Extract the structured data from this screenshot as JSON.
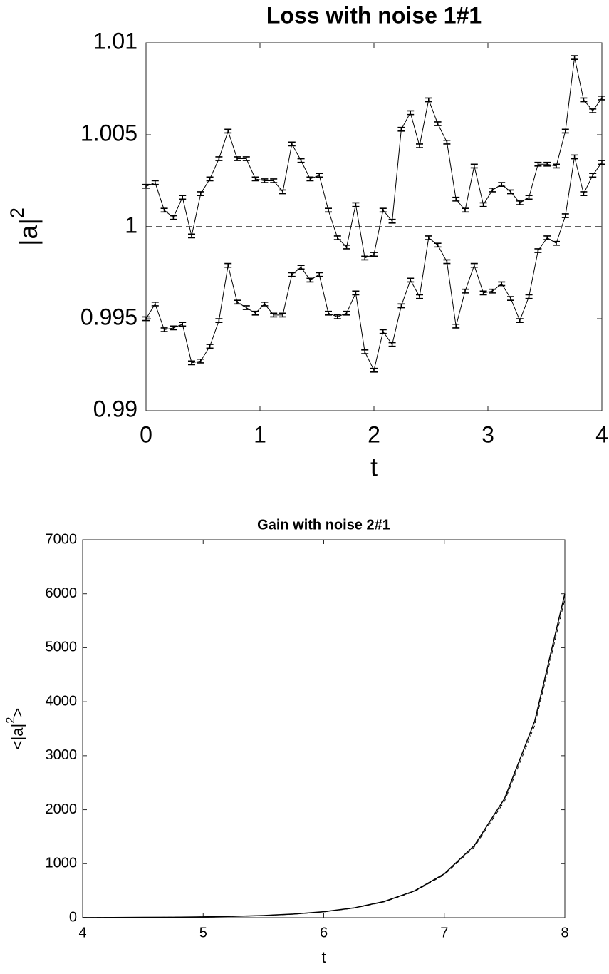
{
  "chart_data": [
    {
      "type": "errorbar-line",
      "title": "Loss with noise 1#1",
      "xlabel": "t",
      "ylabel": {
        "text": "|a|",
        "sup": "2"
      },
      "xlim": [
        0,
        4
      ],
      "xticks": [
        0,
        1,
        2,
        3,
        4
      ],
      "ylim": [
        0.99,
        1.01
      ],
      "yticks": [
        0.99,
        0.995,
        1,
        1.005,
        1.01
      ],
      "hline": 1,
      "hline_style": "dashed",
      "color": "#000000",
      "x": [
        0,
        0.08,
        0.16,
        0.24,
        0.32,
        0.4,
        0.48,
        0.56,
        0.64,
        0.72,
        0.8,
        0.88,
        0.96,
        1.04,
        1.12,
        1.2,
        1.28,
        1.36,
        1.44,
        1.52,
        1.6,
        1.68,
        1.76,
        1.84,
        1.92,
        2,
        2.08,
        2.16,
        2.24,
        2.32,
        2.4,
        2.48,
        2.56,
        2.64,
        2.72,
        2.8,
        2.88,
        2.96,
        3.04,
        3.12,
        3.2,
        3.28,
        3.36,
        3.44,
        3.52,
        3.6,
        3.68,
        3.76,
        3.84,
        3.92,
        4
      ],
      "series": [
        {
          "color": "#000000",
          "error": 0.0001,
          "values": [
            1.0022,
            1.0024,
            1.0009,
            1.0005,
            1.0016,
            0.9995,
            1.0018,
            1.0026,
            1.0037,
            1.0052,
            1.0037,
            1.0037,
            1.0026,
            1.0025,
            1.0025,
            1.0019,
            1.0045,
            1.0036,
            1.0026,
            1.0028,
            1.0009,
            0.9994,
            0.9989,
            1.0012,
            0.9983,
            0.9985,
            1.0009,
            1.0003,
            1.0053,
            1.0062,
            1.0044,
            1.0069,
            1.0056,
            1.0046,
            1.0015,
            1.0009,
            1.0033,
            1.0012,
            1.002,
            1.0023,
            1.0019,
            1.0013,
            1.0016,
            1.0034,
            1.0034,
            1.0033,
            1.0052,
            1.0092,
            1.0069,
            1.0063,
            1.007
          ]
        },
        {
          "color": "#000000",
          "error": 0.0001,
          "values": [
            0.995,
            0.9958,
            0.9944,
            0.9945,
            0.9947,
            0.9926,
            0.9927,
            0.9935,
            0.9949,
            0.9979,
            0.9959,
            0.9956,
            0.9953,
            0.9958,
            0.9952,
            0.9952,
            0.9974,
            0.9978,
            0.9971,
            0.9974,
            0.9953,
            0.9951,
            0.9953,
            0.9964,
            0.9932,
            0.9922,
            0.9943,
            0.9936,
            0.9957,
            0.9971,
            0.9962,
            0.9994,
            0.999,
            0.9981,
            0.9946,
            0.9965,
            0.9979,
            0.9964,
            0.9965,
            0.9969,
            0.9961,
            0.9949,
            0.9962,
            0.9987,
            0.9994,
            0.9991,
            1.0006,
            1.0038,
            1.0018,
            1.0028,
            1.0035
          ]
        }
      ]
    },
    {
      "type": "line",
      "title": "Gain with noise 2#1",
      "xlabel": "t",
      "ylabel": {
        "text": "<|a|",
        "sup": "2",
        "after": ">"
      },
      "xlim": [
        4,
        8
      ],
      "xticks": [
        4,
        5,
        6,
        7,
        8
      ],
      "ylim": [
        0,
        7000
      ],
      "yticks": [
        0,
        1000,
        2000,
        3000,
        4000,
        5000,
        6000,
        7000
      ],
      "x": [
        4,
        4.25,
        4.5,
        4.75,
        5,
        5.25,
        5.5,
        5.75,
        6,
        6.25,
        6.5,
        6.75,
        7,
        7.25,
        7.5,
        7.75,
        8
      ],
      "series": [
        {
          "color": "#000000",
          "style": "solid",
          "values": [
            2,
            3,
            6,
            9,
            15,
            25,
            40,
            67,
            110,
            181,
            299,
            493,
            812,
            1339,
            2207,
            3639,
            6000
          ]
        },
        {
          "color": "#000000",
          "style": "dashed",
          "values": [
            2,
            3,
            5,
            9,
            15,
            24,
            39,
            65,
            107,
            177,
            292,
            482,
            795,
            1310,
            2160,
            3560,
            5900
          ]
        }
      ]
    }
  ]
}
